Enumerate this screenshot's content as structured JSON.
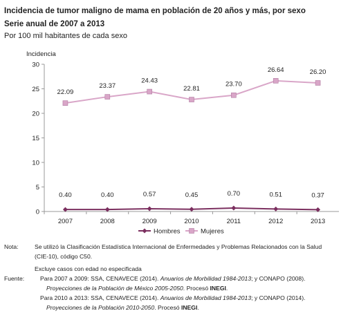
{
  "chart_data": {
    "type": "line",
    "title": "Incidencia de tumor maligno de mama en población de 20 años y más, por sexo",
    "subtitle": "Serie anual de 2007 a 2013",
    "units": "Por 100 mil habitantes de cada sexo",
    "y_label": "Incidencia",
    "categories": [
      "2007",
      "2008",
      "2009",
      "2010",
      "2011",
      "2012",
      "2013"
    ],
    "series": [
      {
        "name": "Hombres",
        "color": "#7b2f5f",
        "marker": "diamond",
        "values": [
          0.4,
          0.4,
          0.57,
          0.45,
          0.7,
          0.51,
          0.37
        ],
        "value_labels": [
          "0.40",
          "0.40",
          "0.57",
          "0.45",
          "0.70",
          "0.51",
          "0.37"
        ]
      },
      {
        "name": "Mujeres",
        "color": "#d9a6c8",
        "marker": "square",
        "values": [
          22.09,
          23.37,
          24.43,
          22.81,
          23.7,
          26.64,
          26.2
        ],
        "value_labels": [
          "22.09",
          "23.37",
          "24.43",
          "22.81",
          "23.70",
          "26.64",
          "26.20"
        ]
      }
    ],
    "ylim": [
      0,
      30
    ],
    "yticks": [
      0,
      5,
      10,
      15,
      20,
      25,
      30
    ],
    "grid": false,
    "legend": "bottom"
  },
  "notes": {
    "nota_label": "Nota:",
    "nota_lines": [
      "Se utilizó la Clasificación Estadística Internacional de Enfermedades y Problemas Relacionados con la Salud",
      "(CIE-10), código C50.",
      "Excluye casos con edad no especificada"
    ],
    "fuente_label": "Fuente:",
    "fuente_lines": [
      [
        {
          "text": "Para 2007 a 2009: SSA, CENAVECE (2014). ",
          "style": "normal"
        },
        {
          "text": "Anuarios de Morbilidad 1984-2013",
          "style": "italic"
        },
        {
          "text": "; y CONAPO (2008).",
          "style": "normal"
        }
      ],
      [
        {
          "text": "Proyecciones de la Población de México 2005-2050",
          "style": "italic"
        },
        {
          "text": ". Procesó ",
          "style": "normal"
        },
        {
          "text": "INEGI",
          "style": "bold"
        },
        {
          "text": ".",
          "style": "normal"
        }
      ],
      [
        {
          "text": "Para 2010 a 2013: SSA, CENAVECE (2014). ",
          "style": "normal"
        },
        {
          "text": "Anuarios de Morbilidad 1984-2013",
          "style": "italic"
        },
        {
          "text": "; y CONAPO (2014).",
          "style": "normal"
        }
      ],
      [
        {
          "text": "Proyecciones de la Población 2010-2050",
          "style": "italic"
        },
        {
          "text": ". Procesó ",
          "style": "normal"
        },
        {
          "text": "INEGI",
          "style": "bold"
        },
        {
          "text": ".",
          "style": "normal"
        }
      ]
    ]
  }
}
